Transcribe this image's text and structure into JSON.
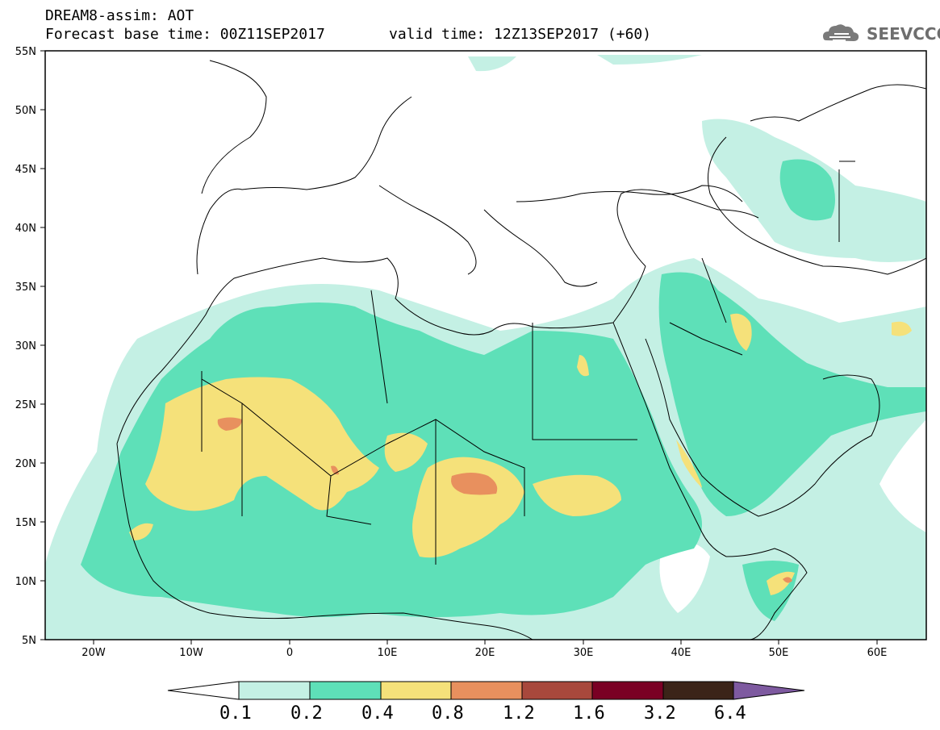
{
  "header": {
    "title": "DREAM8-assim: AOT",
    "base_time": "Forecast base time: 00Z11SEP2017",
    "valid_time": "valid time: 12Z13SEP2017 (+60)"
  },
  "logo": {
    "text": "SEEVCCC",
    "icon": "cloud-icon"
  },
  "map": {
    "lon_range": [
      -25,
      65
    ],
    "lat_range": [
      5,
      55
    ],
    "lat_ticks": [
      "55N",
      "50N",
      "45N",
      "40N",
      "35N",
      "30N",
      "25N",
      "20N",
      "15N",
      "10N",
      "5N"
    ],
    "lon_ticks": [
      "20W",
      "10W",
      "0",
      "10E",
      "20E",
      "30E",
      "40E",
      "50E",
      "60E"
    ]
  },
  "colorbar": {
    "labels": [
      "0.1",
      "0.2",
      "0.4",
      "0.8",
      "1.2",
      "1.6",
      "3.2",
      "6.4"
    ],
    "colors": [
      "#ffffff",
      "#c4f0e4",
      "#5ee0b8",
      "#f5e17a",
      "#e8905e",
      "#a8483c",
      "#7a0024",
      "#3b2418",
      "#7e5aa0"
    ]
  }
}
